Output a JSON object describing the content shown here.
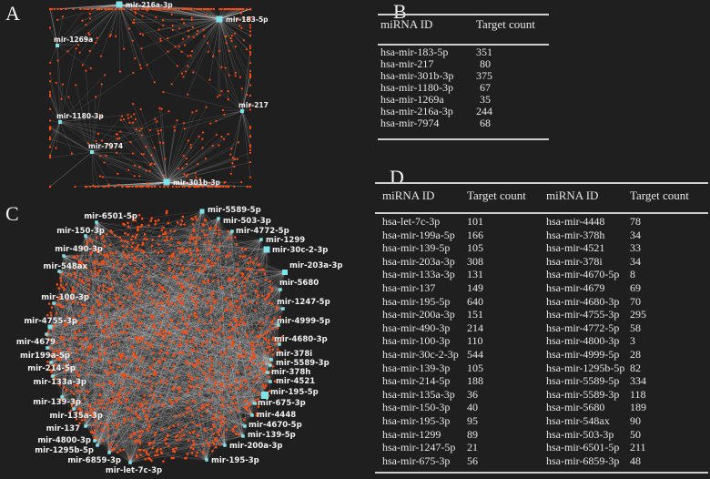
{
  "panels": {
    "a": "A",
    "b": "B",
    "c": "C",
    "d": "D"
  },
  "colors": {
    "background": "#1f1f1f",
    "mirna_node": "#7fe3ea",
    "target_node": "#ff4a10",
    "edge": "#d8d8d8",
    "text": "#e6e6e6"
  },
  "network_a": {
    "nodes": [
      {
        "label": "mir-216a-3p",
        "targets": 244
      },
      {
        "label": "mir-183-5p",
        "targets": 351
      },
      {
        "label": "mir-1269a",
        "targets": 35
      },
      {
        "label": "mir-1180-3p",
        "targets": 67
      },
      {
        "label": "mir-217",
        "targets": 80
      },
      {
        "label": "mir-7974",
        "targets": 68
      },
      {
        "label": "mir-301b-3p",
        "targets": 375
      }
    ]
  },
  "network_c": {
    "nodes": [
      "mir-6501-5p",
      "mir-5589-5p",
      "mir-503-3p",
      "mir-4772-5p",
      "mir-1299",
      "mir-30c-2-3p",
      "mir-203a-3p",
      "mir-5680",
      "mir-1247-5p",
      "mir-4999-5p",
      "mir-4680-3p",
      "mir-378i",
      "mir-5589-3p",
      "mir-378h",
      "mir-4521",
      "mir-195-5p",
      "mir-675-3p",
      "mir-4448",
      "mir-4670-5p",
      "mir-139-5p",
      "mir-200a-3p",
      "mir-195-3p",
      "mir-let-7c-3p",
      "mir-6859-3p",
      "mir-1295b-5p",
      "mir-4800-3p",
      "mir-137",
      "mir-135a-3p",
      "mir-139-3p",
      "mir-133a-3p",
      "mir-214-5p",
      "mir199a-5p",
      "mir-4679",
      "mir-4755-3p",
      "mir-100-3p",
      "mir-548ax",
      "mir-490-3p",
      "mir-150-3p"
    ]
  },
  "table_b": {
    "headers": [
      "miRNA ID",
      "Target  count"
    ],
    "rows": [
      [
        "hsa-mir-183-5p",
        "351"
      ],
      [
        "hsa-mir-217",
        "80"
      ],
      [
        "hsa-mir-301b-3p",
        "375"
      ],
      [
        "hsa-mir-1180-3p",
        "67"
      ],
      [
        "hsa-mir-1269a",
        "35"
      ],
      [
        "hsa-mir-216a-3p",
        "244"
      ],
      [
        "hsa-mir-7974",
        "68"
      ]
    ]
  },
  "table_d": {
    "headers": [
      "miRNA ID",
      "Target count",
      "miRNA ID",
      "Target count"
    ],
    "rows": [
      [
        "hsa-let-7c-3p",
        "101",
        "hsa-mir-4448",
        "78"
      ],
      [
        "hsa-mir-199a-5p",
        "166",
        "hsa-mir-378h",
        "34"
      ],
      [
        "hsa-mir-139-5p",
        "105",
        "hsa-mir-4521",
        "33"
      ],
      [
        "hsa-mir-203a-3p",
        "308",
        "hsa-mir-378i",
        "34"
      ],
      [
        "hsa-mir-133a-3p",
        "131",
        "hsa-mir-4670-5p",
        "8"
      ],
      [
        "hsa-mir-137",
        "149",
        "hsa-mir-4679",
        "69"
      ],
      [
        "hsa-mir-195-5p",
        "640",
        "hsa-mir-4680-3p",
        "70"
      ],
      [
        "hsa-mir-200a-3p",
        "151",
        "hsa-mir-4755-3p",
        "295"
      ],
      [
        "hsa-mir-490-3p",
        "214",
        "hsa-mir-4772-5p",
        "58"
      ],
      [
        "hsa-mir-100-3p",
        "110",
        "hsa-mir-4800-3p",
        "3"
      ],
      [
        "hsa-mir-30c-2-3p",
        "544",
        "hsa-mir-4999-5p",
        "28"
      ],
      [
        "hsa-mir-139-3p",
        "105",
        "hsa-mir-1295b-5p",
        "82"
      ],
      [
        "hsa-mir-214-5p",
        "188",
        "hsa-mir-5589-5p",
        "334"
      ],
      [
        "hsa-mir-135a-3p",
        "36",
        "hsa-mir-5589-3p",
        "118"
      ],
      [
        "hsa-mir-150-3p",
        "40",
        "hsa-mir-5680",
        "189"
      ],
      [
        "hsa-mir-195-3p",
        "95",
        "hsa-mir-548ax",
        "90"
      ],
      [
        "hsa-mir-1299",
        "89",
        "hsa-mir-503-3p",
        "50"
      ],
      [
        "hsa-mir-1247-5p",
        "21",
        "hsa-mir-6501-5p",
        "211"
      ],
      [
        "hsa-mir-675-3p",
        "56",
        "hsa-mir-6859-3p",
        "48"
      ]
    ]
  }
}
